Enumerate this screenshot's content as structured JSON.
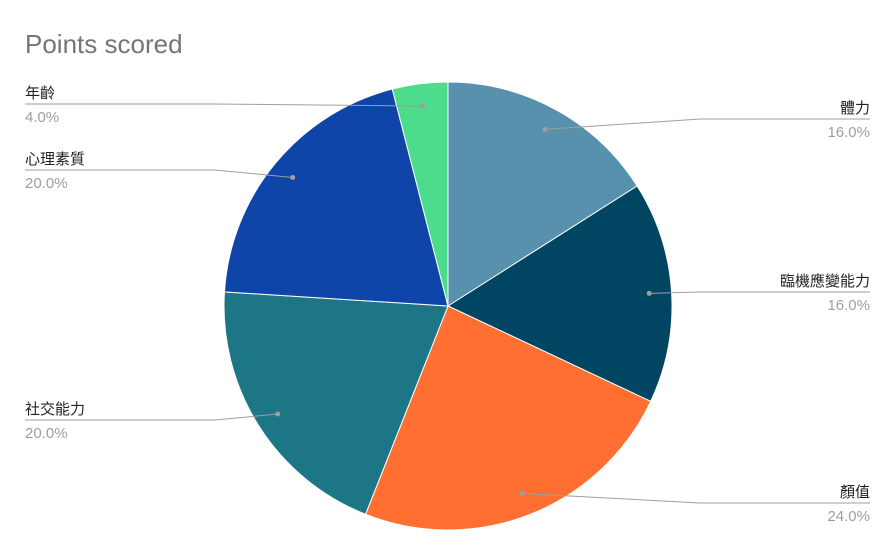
{
  "chart_data": {
    "type": "pie",
    "title": "Points scored",
    "categories": [
      "體力",
      "臨機應變能力",
      "顏值",
      "社交能力",
      "心理素質",
      "年齡"
    ],
    "values": [
      16,
      16,
      24,
      20,
      20,
      4
    ],
    "value_labels": [
      "16.0%",
      "16.0%",
      "24.0%",
      "20.0%",
      "20.0%",
      "4.0%"
    ],
    "colors": [
      "#5891ad",
      "#004561",
      "#ff6f31",
      "#1c7685",
      "#0f45a8",
      "#4cdc8b"
    ]
  }
}
